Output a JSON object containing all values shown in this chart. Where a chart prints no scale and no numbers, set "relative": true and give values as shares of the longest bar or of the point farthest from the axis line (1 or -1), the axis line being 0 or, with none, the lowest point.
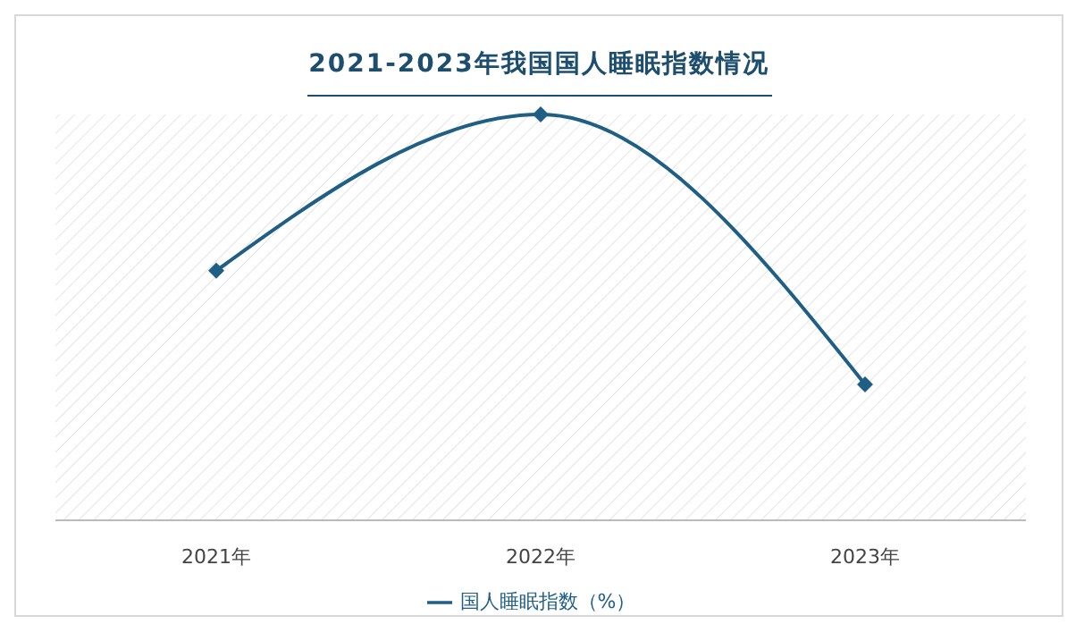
{
  "chart_data": {
    "type": "line",
    "title": "2021-2023年我国国人睡眠指数情况",
    "categories": [
      "2021年",
      "2022年",
      "2023年"
    ],
    "relative": true,
    "series": [
      {
        "name": "国人睡眠指数（%）",
        "color": "#1f5f86",
        "values": [
          0.615,
          1,
          0.335
        ]
      }
    ],
    "marker": "diamond",
    "line_style": "solid",
    "legend": "bottom"
  }
}
